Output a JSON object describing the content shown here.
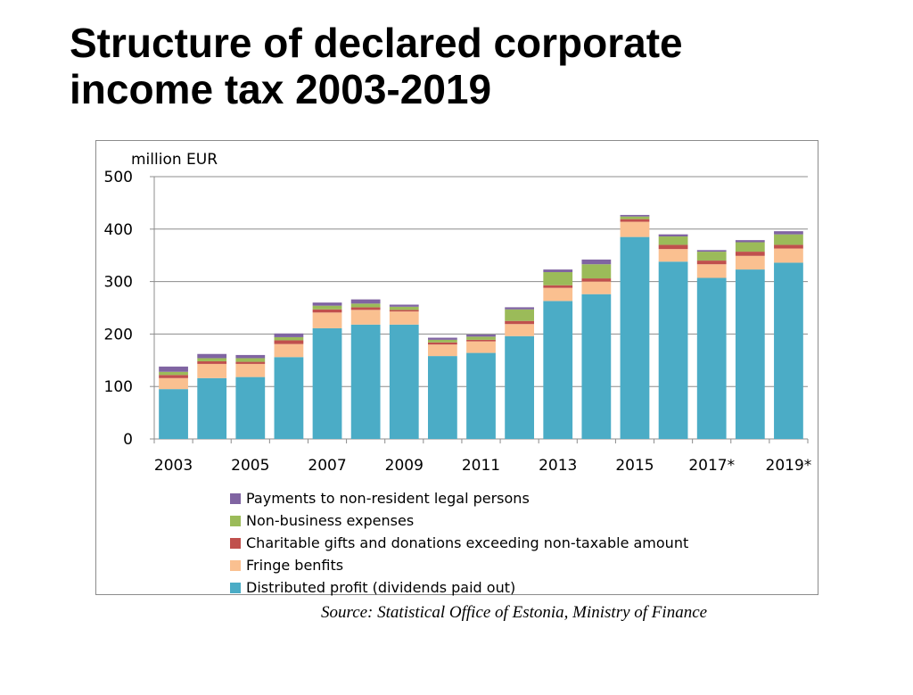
{
  "title": {
    "line1": "Structure of declared corporate",
    "line2": "income tax  2003-2019"
  },
  "source": "Source: Statistical Office of Estonia, Ministry of Finance",
  "chart_data": {
    "type": "bar",
    "stacked": true,
    "ylabel": "million EUR",
    "ylim": [
      0,
      500
    ],
    "yticks": [
      "0",
      "100",
      "200",
      "300",
      "400",
      "500"
    ],
    "grid": true,
    "legend_position": "bottom",
    "categories": [
      "2003",
      "2004",
      "2005",
      "2006",
      "2007",
      "2008",
      "2009",
      "2010",
      "2011",
      "2012",
      "2013",
      "2014",
      "2015",
      "2016",
      "2017*",
      "2018",
      "2019*"
    ],
    "tick_labels": [
      "2003",
      "",
      "2005",
      "",
      "2007",
      "",
      "2009",
      "",
      "2011",
      "",
      "2013",
      "",
      "2015",
      "",
      "2017*",
      "",
      "2019*"
    ],
    "series": [
      {
        "name": "Distributed profit (dividends  paid out)",
        "color": "#4bacc6",
        "values": [
          95,
          116,
          118,
          156,
          211,
          218,
          218,
          158,
          164,
          196,
          263,
          276,
          385,
          338,
          307,
          323,
          336
        ]
      },
      {
        "name": "Fringe benfits",
        "color": "#fac090",
        "values": [
          21,
          27,
          25,
          25,
          30,
          28,
          25,
          22,
          22,
          23,
          25,
          24,
          29,
          24,
          26,
          26,
          27
        ]
      },
      {
        "name": "Charitable gifts and donations exceeding non-taxable amount",
        "color": "#c0504d",
        "values": [
          6,
          5,
          4,
          7,
          6,
          5,
          3,
          4,
          3,
          6,
          5,
          6,
          5,
          8,
          7,
          8,
          7
        ]
      },
      {
        "name": "Non-business expenses",
        "color": "#9bbb59",
        "values": [
          6,
          6,
          7,
          6,
          7,
          7,
          6,
          5,
          6,
          22,
          25,
          27,
          5,
          16,
          17,
          18,
          20
        ]
      },
      {
        "name": "Payments to non-resident legal persons",
        "color": "#8064a2",
        "values": [
          10,
          8,
          6,
          7,
          6,
          8,
          4,
          4,
          4,
          4,
          5,
          9,
          3,
          4,
          3,
          4,
          6
        ]
      }
    ],
    "legend_order": [
      4,
      3,
      2,
      1,
      0
    ]
  }
}
